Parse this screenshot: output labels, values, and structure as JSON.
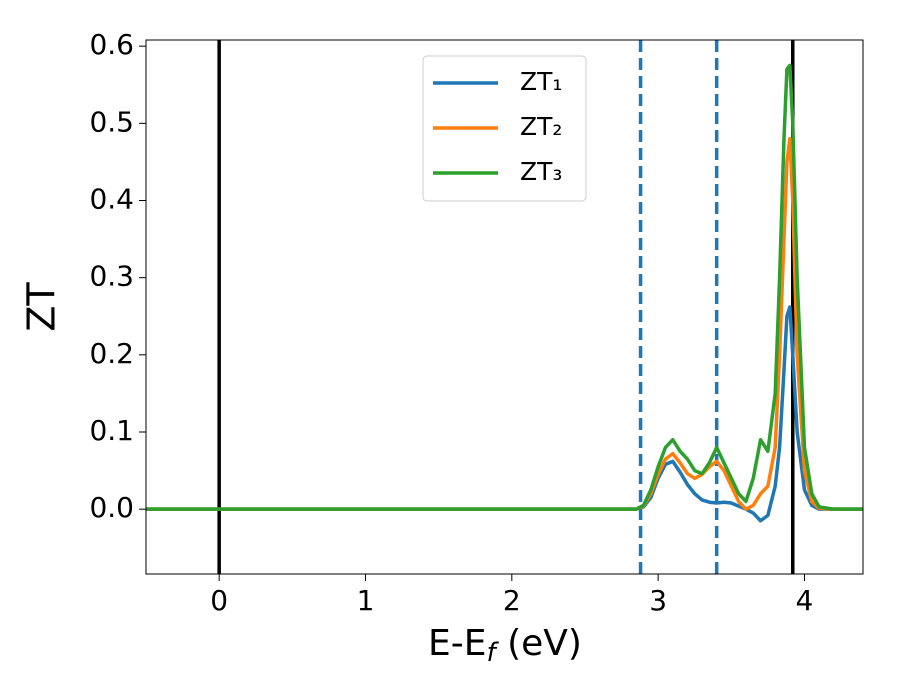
{
  "chart_data": {
    "type": "line",
    "xlabel": {
      "main": "E-E",
      "sub": "f",
      "rest": " (eV)"
    },
    "ylabel": "ZT",
    "x": [
      -0.5,
      2.8,
      2.85,
      2.9,
      2.95,
      3.0,
      3.05,
      3.1,
      3.15,
      3.2,
      3.25,
      3.3,
      3.35,
      3.4,
      3.45,
      3.5,
      3.55,
      3.6,
      3.65,
      3.7,
      3.75,
      3.8,
      3.83,
      3.86,
      3.88,
      3.9,
      3.92,
      3.95,
      4.0,
      4.05,
      4.1,
      4.2,
      4.4
    ],
    "series": [
      {
        "name": "ZT₁",
        "color": "#1f77b4",
        "values": [
          0,
          0,
          0,
          0.003,
          0.015,
          0.04,
          0.058,
          0.062,
          0.048,
          0.032,
          0.02,
          0.012,
          0.009,
          0.008,
          0.009,
          0.008,
          0.004,
          0,
          -0.005,
          -0.015,
          -0.008,
          0.03,
          0.08,
          0.18,
          0.25,
          0.262,
          0.2,
          0.1,
          0.025,
          0.005,
          0,
          0,
          0
        ]
      },
      {
        "name": "ZT₂",
        "color": "#ff7f0e",
        "values": [
          0,
          0,
          0,
          0.004,
          0.02,
          0.045,
          0.065,
          0.072,
          0.06,
          0.046,
          0.04,
          0.045,
          0.055,
          0.062,
          0.05,
          0.03,
          0.01,
          0,
          0.005,
          0.02,
          0.03,
          0.08,
          0.2,
          0.35,
          0.45,
          0.48,
          0.4,
          0.2,
          0.05,
          0.01,
          0.001,
          0,
          0
        ]
      },
      {
        "name": "ZT₃",
        "color": "#2ca02c",
        "values": [
          0,
          0,
          0,
          0.005,
          0.025,
          0.055,
          0.08,
          0.09,
          0.075,
          0.065,
          0.05,
          0.046,
          0.06,
          0.08,
          0.06,
          0.04,
          0.02,
          0.01,
          0.04,
          0.09,
          0.075,
          0.15,
          0.3,
          0.48,
          0.57,
          0.575,
          0.5,
          0.3,
          0.08,
          0.02,
          0.003,
          0,
          0
        ]
      }
    ],
    "vlines": [
      {
        "x": 0,
        "color": "#000000",
        "style": "solid"
      },
      {
        "x": 3.92,
        "color": "#000000",
        "style": "solid"
      },
      {
        "x": 2.88,
        "color": "#1f77b4",
        "style": "dashed"
      },
      {
        "x": 3.4,
        "color": "#1f77b4",
        "style": "dashed"
      }
    ],
    "xlim": [
      -0.5,
      4.4
    ],
    "xticks": [
      0,
      1,
      2,
      3,
      4
    ],
    "ylim": [
      -0.084,
      0.608
    ],
    "yticks": [
      {
        "value": 0,
        "label": "0.0"
      },
      0.1,
      0.2,
      0.3,
      0.4,
      0.5,
      0.6
    ],
    "legend": "top-center"
  }
}
